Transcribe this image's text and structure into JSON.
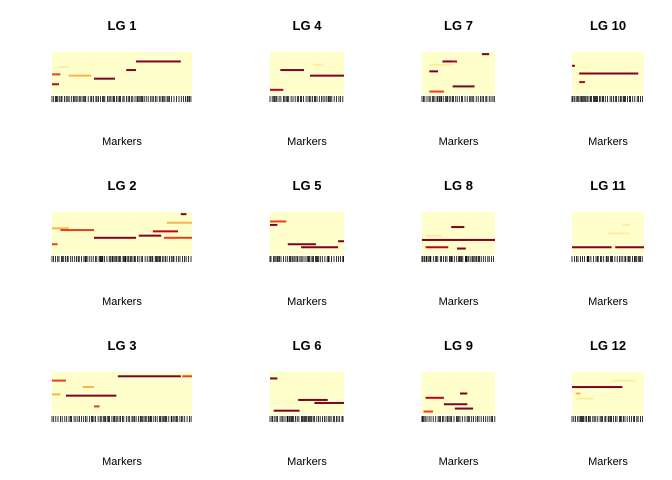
{
  "chart_data": {
    "type": "heatmap",
    "layout": "small multiples, 3 rows x 4 columns, column-major order",
    "xlabel": "Markers",
    "colors": {
      "background": "#ffffcc",
      "light": "#ffeda0",
      "mid": "#feb24c",
      "orange": "#f03b20",
      "red": "#bd0026",
      "dark": "#800026"
    },
    "panels": [
      {
        "title": "LG 1",
        "segments": [
          {
            "row": 0.22,
            "x0": 0.6,
            "x1": 0.92,
            "color": "dark"
          },
          {
            "row": 0.42,
            "x0": 0.53,
            "x1": 0.6,
            "color": "dark"
          },
          {
            "row": 0.52,
            "x0": 0.0,
            "x1": 0.06,
            "color": "orange"
          },
          {
            "row": 0.62,
            "x0": 0.3,
            "x1": 0.45,
            "color": "dark"
          },
          {
            "row": 0.55,
            "x0": 0.12,
            "x1": 0.28,
            "color": "mid"
          },
          {
            "row": 0.35,
            "x0": 0.05,
            "x1": 0.12,
            "color": "light"
          },
          {
            "row": 0.75,
            "x0": 0.0,
            "x1": 0.05,
            "color": "red"
          }
        ]
      },
      {
        "title": "LG 2",
        "segments": [
          {
            "row": 0.05,
            "x0": 0.92,
            "x1": 0.96,
            "color": "dark"
          },
          {
            "row": 0.38,
            "x0": 0.0,
            "x1": 0.12,
            "color": "mid"
          },
          {
            "row": 0.42,
            "x0": 0.06,
            "x1": 0.3,
            "color": "orange"
          },
          {
            "row": 0.6,
            "x0": 0.3,
            "x1": 0.6,
            "color": "dark"
          },
          {
            "row": 0.55,
            "x0": 0.62,
            "x1": 0.78,
            "color": "dark"
          },
          {
            "row": 0.6,
            "x0": 0.8,
            "x1": 1.0,
            "color": "orange"
          },
          {
            "row": 0.45,
            "x0": 0.72,
            "x1": 0.9,
            "color": "red"
          },
          {
            "row": 0.25,
            "x0": 0.82,
            "x1": 1.0,
            "color": "mid"
          },
          {
            "row": 0.75,
            "x0": 0.0,
            "x1": 0.04,
            "color": "orange"
          }
        ]
      },
      {
        "title": "LG 3",
        "segments": [
          {
            "row": 0.1,
            "x0": 0.47,
            "x1": 0.92,
            "color": "dark"
          },
          {
            "row": 0.1,
            "x0": 0.93,
            "x1": 1.0,
            "color": "orange"
          },
          {
            "row": 0.2,
            "x0": 0.0,
            "x1": 0.1,
            "color": "orange"
          },
          {
            "row": 0.35,
            "x0": 0.22,
            "x1": 0.3,
            "color": "mid"
          },
          {
            "row": 0.52,
            "x0": 0.0,
            "x1": 0.06,
            "color": "mid"
          },
          {
            "row": 0.55,
            "x0": 0.1,
            "x1": 0.46,
            "color": "dark"
          },
          {
            "row": 0.8,
            "x0": 0.3,
            "x1": 0.34,
            "color": "orange"
          }
        ]
      },
      {
        "title": "LG 4",
        "segments": [
          {
            "row": 0.42,
            "x0": 0.14,
            "x1": 0.46,
            "color": "dark"
          },
          {
            "row": 0.55,
            "x0": 0.54,
            "x1": 1.0,
            "color": "dark"
          },
          {
            "row": 0.88,
            "x0": 0.0,
            "x1": 0.18,
            "color": "red"
          },
          {
            "row": 0.3,
            "x0": 0.58,
            "x1": 0.72,
            "color": "light"
          }
        ]
      },
      {
        "title": "LG 5",
        "segments": [
          {
            "row": 0.22,
            "x0": 0.0,
            "x1": 0.22,
            "color": "orange"
          },
          {
            "row": 0.3,
            "x0": 0.0,
            "x1": 0.1,
            "color": "dark"
          },
          {
            "row": 0.75,
            "x0": 0.24,
            "x1": 0.62,
            "color": "dark"
          },
          {
            "row": 0.82,
            "x0": 0.42,
            "x1": 0.92,
            "color": "dark"
          },
          {
            "row": 0.68,
            "x0": 0.92,
            "x1": 1.0,
            "color": "dark"
          }
        ]
      },
      {
        "title": "LG 6",
        "segments": [
          {
            "row": 0.15,
            "x0": 0.0,
            "x1": 0.1,
            "color": "dark"
          },
          {
            "row": 0.65,
            "x0": 0.38,
            "x1": 0.78,
            "color": "dark"
          },
          {
            "row": 0.72,
            "x0": 0.6,
            "x1": 1.0,
            "color": "dark"
          },
          {
            "row": 0.9,
            "x0": 0.05,
            "x1": 0.4,
            "color": "dark"
          }
        ]
      },
      {
        "title": "LG 7",
        "segments": [
          {
            "row": 0.05,
            "x0": 0.82,
            "x1": 0.92,
            "color": "dark"
          },
          {
            "row": 0.22,
            "x0": 0.28,
            "x1": 0.42,
            "color": "dark"
          },
          {
            "row": 0.22,
            "x0": 0.42,
            "x1": 0.48,
            "color": "red"
          },
          {
            "row": 0.3,
            "x0": 0.1,
            "x1": 0.42,
            "color": "light"
          },
          {
            "row": 0.45,
            "x0": 0.1,
            "x1": 0.22,
            "color": "dark"
          },
          {
            "row": 0.8,
            "x0": 0.42,
            "x1": 0.72,
            "color": "dark"
          },
          {
            "row": 0.92,
            "x0": 0.1,
            "x1": 0.3,
            "color": "orange"
          }
        ]
      },
      {
        "title": "LG 8",
        "segments": [
          {
            "row": 0.35,
            "x0": 0.4,
            "x1": 0.58,
            "color": "dark"
          },
          {
            "row": 0.55,
            "x0": 0.05,
            "x1": 0.28,
            "color": "light"
          },
          {
            "row": 0.65,
            "x0": 0.0,
            "x1": 1.0,
            "color": "dark"
          },
          {
            "row": 0.82,
            "x0": 0.05,
            "x1": 0.36,
            "color": "red"
          },
          {
            "row": 0.85,
            "x0": 0.48,
            "x1": 0.6,
            "color": "dark"
          }
        ]
      },
      {
        "title": "LG 9",
        "segments": [
          {
            "row": 0.75,
            "x0": 0.3,
            "x1": 0.62,
            "color": "dark"
          },
          {
            "row": 0.85,
            "x0": 0.45,
            "x1": 0.7,
            "color": "dark"
          },
          {
            "row": 0.92,
            "x0": 0.02,
            "x1": 0.15,
            "color": "orange"
          },
          {
            "row": 0.6,
            "x0": 0.05,
            "x1": 0.3,
            "color": "red"
          },
          {
            "row": 0.5,
            "x0": 0.52,
            "x1": 0.62,
            "color": "dark"
          }
        ]
      },
      {
        "title": "LG 10",
        "segments": [
          {
            "row": 0.32,
            "x0": 0.0,
            "x1": 0.04,
            "color": "dark"
          },
          {
            "row": 0.5,
            "x0": 0.1,
            "x1": 0.92,
            "color": "dark"
          },
          {
            "row": 0.7,
            "x0": 0.1,
            "x1": 0.18,
            "color": "red"
          }
        ]
      },
      {
        "title": "LG 11",
        "segments": [
          {
            "row": 0.5,
            "x0": 0.5,
            "x1": 0.8,
            "color": "light"
          },
          {
            "row": 0.82,
            "x0": 0.0,
            "x1": 0.55,
            "color": "dark"
          },
          {
            "row": 0.82,
            "x0": 0.6,
            "x1": 1.0,
            "color": "dark"
          },
          {
            "row": 0.3,
            "x0": 0.7,
            "x1": 0.8,
            "color": "light"
          }
        ]
      },
      {
        "title": "LG 12",
        "segments": [
          {
            "row": 0.35,
            "x0": 0.0,
            "x1": 0.7,
            "color": "dark"
          },
          {
            "row": 0.5,
            "x0": 0.05,
            "x1": 0.12,
            "color": "mid"
          },
          {
            "row": 0.2,
            "x0": 0.55,
            "x1": 0.88,
            "color": "light"
          },
          {
            "row": 0.62,
            "x0": 0.05,
            "x1": 0.3,
            "color": "light"
          }
        ]
      }
    ]
  }
}
